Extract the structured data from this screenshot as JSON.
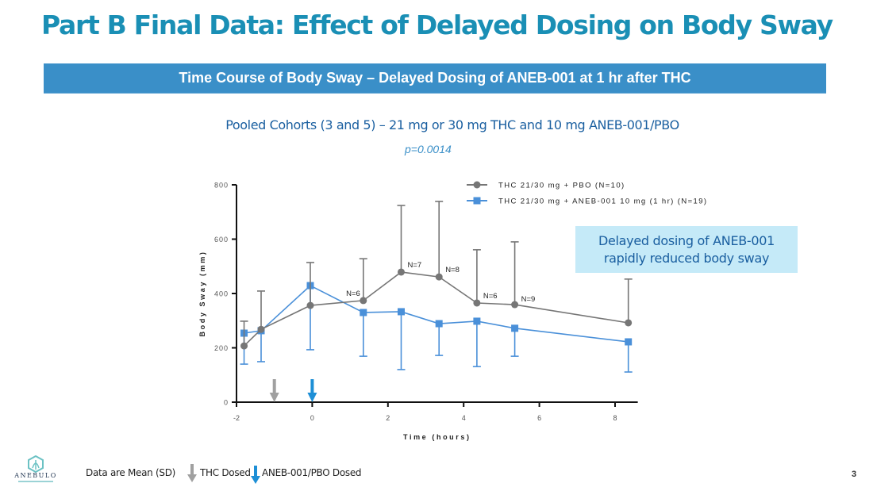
{
  "header": {
    "title": "Part B Final Data: Effect of Delayed Dosing on Body Sway",
    "banner": "Time Course of Body Sway – Delayed Dosing of ANEB-001 at 1 hr after THC",
    "subtitle": "Pooled Cohorts (3 and 5)  – 21 mg or 30 mg THC and 10 mg ANEB-001/PBO",
    "p_value": "p=0.0014"
  },
  "callout": {
    "line1": "Delayed dosing of ANEB-001",
    "line2": "rapidly reduced body sway"
  },
  "footer": {
    "note": "Data are Mean (SD)",
    "thc_dosed_label": "THC Dosed",
    "aneb_dosed_label": "ANEB-001/PBO Dosed",
    "page_number": "3",
    "logo_name": "ANEBULO",
    "logo_icon": "hexagon-leaf-logo"
  },
  "colors": {
    "title": "#1a8fb5",
    "banner": "#3a8fc8",
    "pbo_series": "#767676",
    "aneb_series": "#4a90d9",
    "thc_arrow": "#a0a0a0",
    "aneb_arrow": "#1e8fd6",
    "callout_bg": "#c5eaf8"
  },
  "chart_data": {
    "type": "line",
    "title": "",
    "xlabel": "Time (hours)",
    "ylabel": "Body Sway (mm)",
    "xlim": [
      -2,
      8.6
    ],
    "ylim": [
      0,
      800
    ],
    "xticks": [
      -2,
      0,
      2,
      4,
      6,
      8
    ],
    "yticks": [
      0,
      200,
      400,
      600,
      800
    ],
    "grid": false,
    "legend_position": "top-right",
    "series": [
      {
        "name": "THC 21/30 mg + PBO (N=10)",
        "marker": "circle",
        "error_direction": "up",
        "x": [
          -1.8,
          -1.35,
          -0.05,
          1.35,
          2.35,
          3.35,
          4.35,
          5.35,
          8.35
        ],
        "values": [
          207,
          268,
          356,
          374,
          479,
          461,
          365,
          359,
          292
        ],
        "sd": [
          91,
          141,
          158,
          154,
          245,
          278,
          196,
          231,
          161
        ],
        "annotations": [
          "",
          "",
          "",
          "N=6",
          "N=7",
          "N=8",
          "N=6",
          "N=9",
          ""
        ]
      },
      {
        "name": "THC 21/30 mg + ANEB-001 10 mg (1 hr) (N=19)",
        "marker": "square",
        "error_direction": "down",
        "x": [
          -1.8,
          -1.35,
          -0.05,
          1.35,
          2.35,
          3.35,
          4.35,
          5.35,
          8.35
        ],
        "values": [
          254,
          263,
          429,
          330,
          333,
          289,
          298,
          272,
          222
        ],
        "sd": [
          114,
          114,
          236,
          161,
          213,
          117,
          167,
          103,
          111
        ]
      }
    ],
    "dose_markers": [
      {
        "label": "THC Dosed",
        "x": -1,
        "color": "#a0a0a0"
      },
      {
        "label": "ANEB-001/PBO Dosed",
        "x": 0,
        "color": "#1e8fd6"
      }
    ]
  }
}
